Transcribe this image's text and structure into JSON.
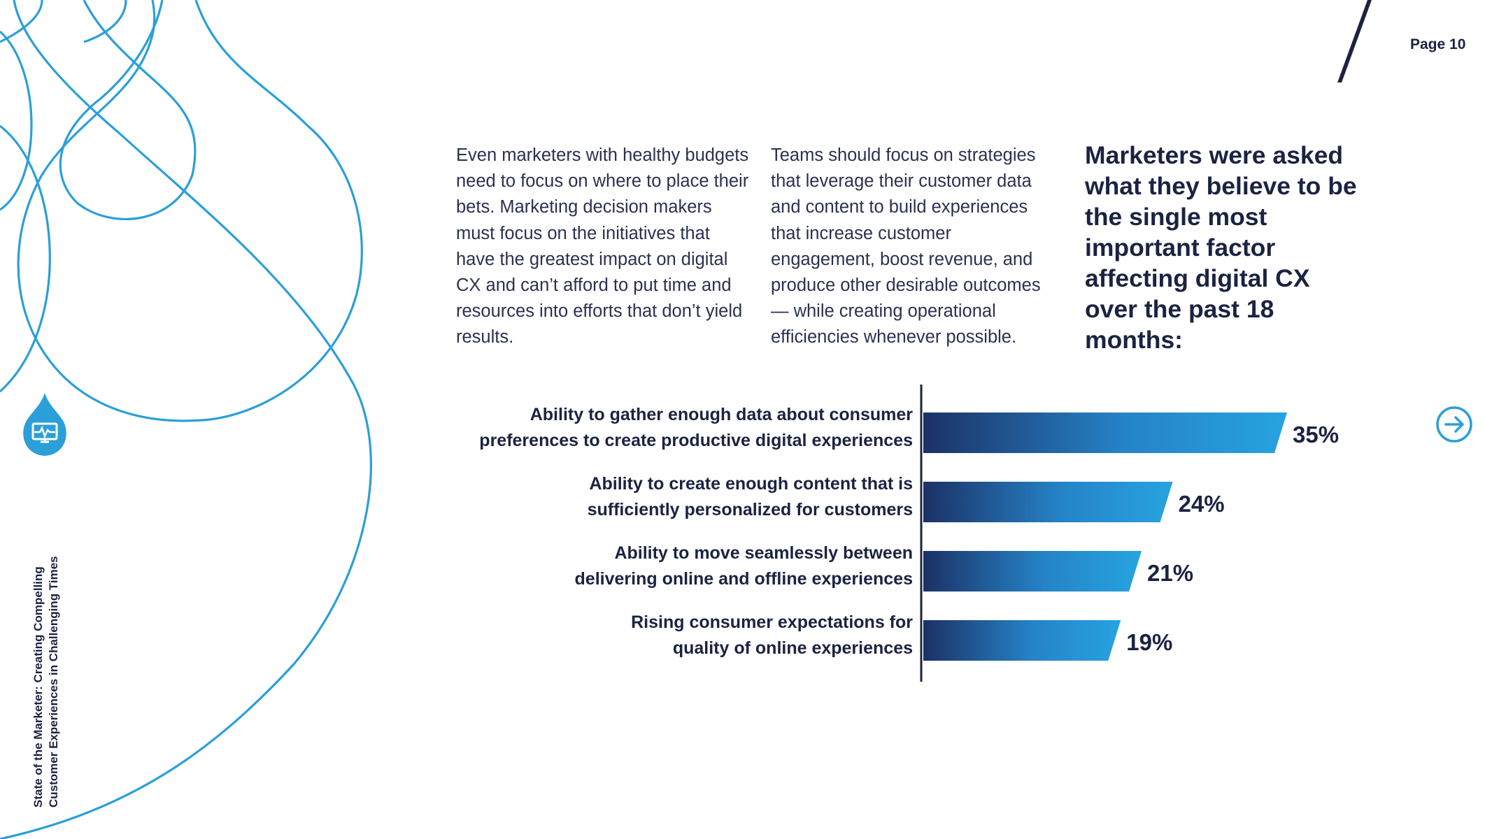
{
  "page": {
    "number_label": "Page 10"
  },
  "body_text": {
    "col1": "Even marketers with healthy budgets need to focus on where to place their bets. Marketing decision makers must focus on the initiatives that have the greatest impact on digital CX and can’t afford to put time and resources into efforts that don’t yield results.",
    "col2": "Teams should focus on strategies that leverage their customer data and content to build experiences that increase customer engagement, boost revenue, and produce other desirable outcomes — while creating operational efficiencies whenever possible."
  },
  "heading": "Marketers were asked what they believe to be the single most important factor affecting digital CX over the past 18 months:",
  "sidebar": {
    "title_line1": "State of the Marketer: Creating Compelling",
    "title_line2": "Customer Experiences in Challenging Times",
    "icon": "monitor-heartbeat-icon"
  },
  "nav": {
    "next_icon": "arrow-right-circle-icon"
  },
  "colors": {
    "accent": "#2b9fd8",
    "navy": "#1b2341",
    "bar_start": "#1c3166",
    "bar_end": "#27a3e0"
  },
  "chart_data": {
    "type": "bar",
    "orientation": "horizontal",
    "categories": [
      [
        "Ability to gather enough data about consumer",
        "preferences to create productive digital experiences"
      ],
      [
        "Ability to create enough content that is",
        "sufficiently personalized for customers"
      ],
      [
        "Ability to move seamlessly between",
        "delivering online and offline experiences"
      ],
      [
        "Rising consumer expectations for",
        "quality of online experiences"
      ]
    ],
    "values": [
      35,
      24,
      21,
      19
    ],
    "value_labels": [
      "35%",
      "24%",
      "21%",
      "19%"
    ],
    "unit": "%",
    "xlim": [
      0,
      35
    ],
    "grid": false,
    "legend": "none"
  }
}
